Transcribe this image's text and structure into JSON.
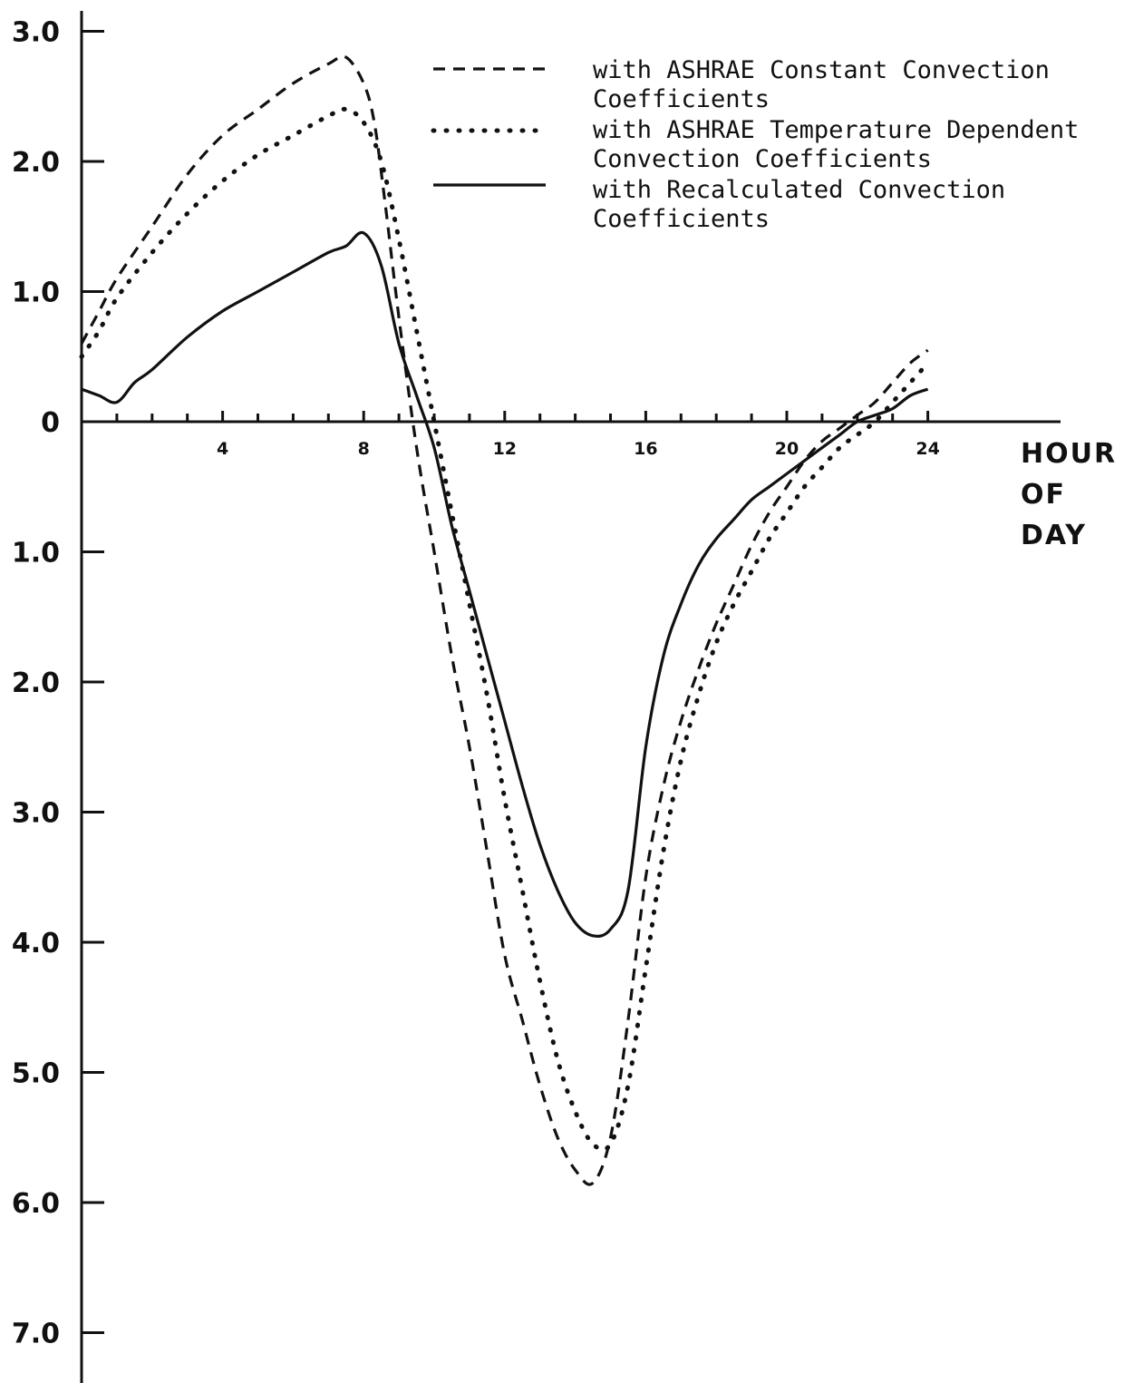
{
  "chart_data": {
    "type": "line",
    "title": "",
    "xlabel": "HOUR OF DAY",
    "xlabel_lines": [
      "HOUR",
      "OF",
      "DAY"
    ],
    "ylabel": "",
    "xlim": [
      0,
      24
    ],
    "ylim": [
      -7.3,
      3.0
    ],
    "grid": false,
    "legend_position": "top-right",
    "x_ticks": [
      4,
      8,
      12,
      16,
      20,
      24
    ],
    "x_tick_labels": [
      "4",
      "8",
      "12",
      "16",
      "20",
      "24"
    ],
    "y_ticks": [
      3,
      2,
      1,
      0,
      -1,
      -2,
      -3,
      -4,
      -5,
      -6,
      -7
    ],
    "y_tick_labels": [
      "3.0",
      "2.0",
      "1.0",
      "0",
      "1.0",
      "2.0",
      "3.0",
      "4.0",
      "5.0",
      "6.0",
      "7.0"
    ],
    "series": [
      {
        "name": "with ASHRAE Constant Convection Coefficients",
        "legend_lines": [
          "with ASHRAE Constant Convection",
          "Coefficients"
        ],
        "style": "dashed",
        "x": [
          0,
          0.5,
          1,
          2,
          3,
          4,
          5,
          6,
          7,
          7.5,
          8,
          8.3,
          8.6,
          9,
          9.5,
          10,
          10.5,
          11,
          11.5,
          12,
          12.5,
          13,
          13.5,
          14,
          14.5,
          15,
          15.5,
          16,
          16.5,
          17,
          17.5,
          18,
          18.5,
          19,
          19.5,
          20,
          20.5,
          21,
          21.5,
          22,
          22.5,
          23,
          23.5,
          24
        ],
        "y": [
          0.6,
          0.85,
          1.1,
          1.5,
          1.9,
          2.2,
          2.4,
          2.6,
          2.75,
          2.8,
          2.6,
          2.3,
          1.7,
          0.8,
          -0.2,
          -1.0,
          -1.8,
          -2.5,
          -3.3,
          -4.1,
          -4.6,
          -5.1,
          -5.5,
          -5.75,
          -5.85,
          -5.5,
          -4.6,
          -3.5,
          -2.8,
          -2.3,
          -1.9,
          -1.55,
          -1.25,
          -0.95,
          -0.7,
          -0.5,
          -0.3,
          -0.15,
          -0.05,
          0.05,
          0.15,
          0.3,
          0.45,
          0.55
        ]
      },
      {
        "name": "with ASHRAE Temperature Dependent Convection Coefficients",
        "legend_lines": [
          "with ASHRAE Temperature Dependent",
          "Convection Coefficients"
        ],
        "style": "dotted",
        "x": [
          0,
          0.5,
          1,
          2,
          3,
          4,
          5,
          6,
          7,
          7.5,
          8,
          8.5,
          9,
          9.5,
          10,
          10.5,
          11,
          11.5,
          12,
          12.5,
          13,
          13.5,
          14,
          14.5,
          15,
          15.5,
          16,
          16.5,
          17,
          17.5,
          18,
          18.5,
          19,
          19.5,
          20,
          20.5,
          21,
          21.5,
          22,
          22.5,
          23,
          23.5,
          24
        ],
        "y": [
          0.5,
          0.7,
          0.95,
          1.3,
          1.6,
          1.85,
          2.05,
          2.2,
          2.35,
          2.4,
          2.3,
          2.0,
          1.4,
          0.7,
          0.0,
          -0.7,
          -1.4,
          -2.1,
          -2.9,
          -3.6,
          -4.3,
          -4.9,
          -5.3,
          -5.55,
          -5.55,
          -5.1,
          -4.2,
          -3.3,
          -2.6,
          -2.1,
          -1.7,
          -1.4,
          -1.15,
          -0.9,
          -0.7,
          -0.5,
          -0.35,
          -0.2,
          -0.1,
          0.0,
          0.15,
          0.3,
          0.45
        ]
      },
      {
        "name": "with Recalculated Convection Coefficients",
        "legend_lines": [
          "with Recalculated Convection",
          "Coefficients"
        ],
        "style": "solid",
        "x": [
          0,
          0.5,
          1,
          1.5,
          2,
          3,
          4,
          5,
          6,
          7,
          7.5,
          8,
          8.5,
          9,
          9.5,
          10,
          10.5,
          11,
          11.5,
          12,
          12.5,
          13,
          13.5,
          14,
          14.5,
          15,
          15.5,
          16,
          16.5,
          17,
          17.5,
          18,
          18.5,
          19,
          19.5,
          20,
          20.5,
          21,
          21.5,
          22,
          22.5,
          23,
          23.5,
          24
        ],
        "y": [
          0.25,
          0.2,
          0.15,
          0.3,
          0.4,
          0.65,
          0.85,
          1.0,
          1.15,
          1.3,
          1.35,
          1.45,
          1.2,
          0.6,
          0.2,
          -0.2,
          -0.8,
          -1.3,
          -1.8,
          -2.3,
          -2.8,
          -3.25,
          -3.6,
          -3.85,
          -3.95,
          -3.9,
          -3.6,
          -2.5,
          -1.8,
          -1.4,
          -1.1,
          -0.9,
          -0.75,
          -0.6,
          -0.5,
          -0.4,
          -0.3,
          -0.2,
          -0.1,
          0.0,
          0.05,
          0.1,
          0.2,
          0.25
        ]
      }
    ]
  }
}
